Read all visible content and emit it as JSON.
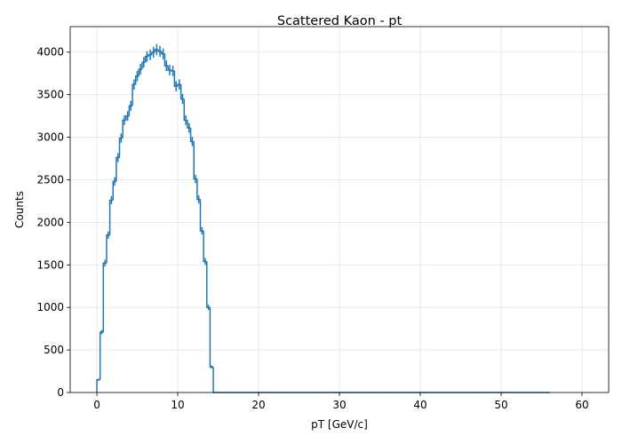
{
  "chart_data": {
    "type": "histogram",
    "title": "Scattered Kaon - pt",
    "xlabel": "pT [GeV/c]",
    "ylabel": "Counts",
    "xlim": [
      -3.3,
      63.3
    ],
    "ylim": [
      0,
      4300
    ],
    "xticks": [
      0,
      10,
      20,
      30,
      40,
      50,
      60
    ],
    "yticks": [
      0,
      500,
      1000,
      1500,
      2000,
      2500,
      3000,
      3500,
      4000
    ],
    "grid": true,
    "bin_edges_range": [
      0,
      60
    ],
    "bin_width": 0.4,
    "values": [
      150,
      710,
      1520,
      1850,
      2260,
      2480,
      2760,
      2990,
      3200,
      3250,
      3370,
      3620,
      3720,
      3800,
      3880,
      3950,
      3970,
      4000,
      4030,
      4010,
      3980,
      3840,
      3790,
      3780,
      3600,
      3620,
      3450,
      3200,
      3110,
      2950,
      2510,
      2270,
      1900,
      1540,
      1000,
      300,
      0,
      0,
      0,
      0,
      0,
      0,
      0,
      0,
      0,
      0,
      0,
      0,
      0,
      0,
      0,
      0,
      0,
      0,
      0,
      0,
      0,
      0,
      0,
      0,
      0,
      0,
      0,
      0,
      0,
      0,
      0,
      0,
      0,
      0,
      0,
      0,
      0,
      0,
      0,
      0,
      0,
      0,
      0,
      0,
      0,
      0,
      0,
      0,
      0,
      0,
      0,
      0,
      0,
      0,
      0,
      0,
      0,
      0,
      0,
      0,
      0,
      0,
      0,
      0,
      0,
      0,
      0,
      0,
      0,
      0,
      0,
      0,
      0,
      0,
      0,
      0,
      0,
      0,
      0,
      0,
      0,
      0,
      0,
      0,
      0,
      0,
      0,
      0,
      0,
      0,
      0,
      0,
      0,
      0,
      0,
      0,
      0,
      0,
      0,
      0,
      0,
      0,
      0,
      0
    ],
    "error_bars": true
  }
}
